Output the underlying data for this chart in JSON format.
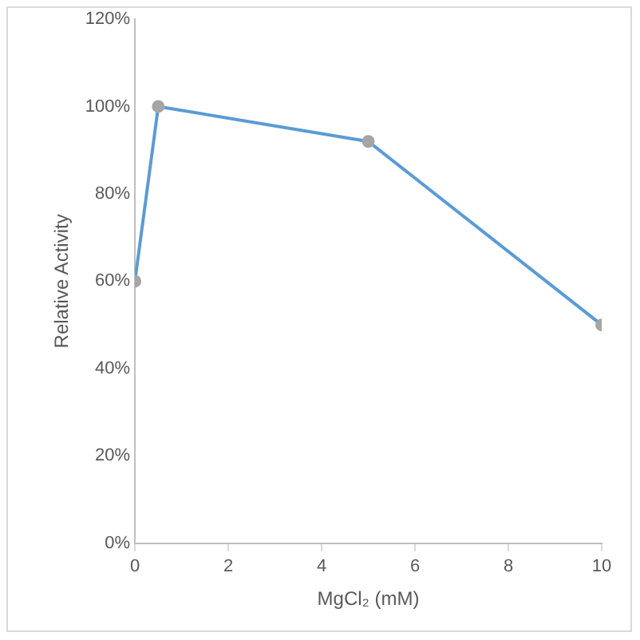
{
  "chart_data": {
    "type": "line",
    "xlabel": "MgCl₂ (mM)",
    "ylabel": "Relative Activity",
    "x": [
      0,
      0.5,
      5,
      10
    ],
    "series": [
      {
        "color": "#5b9bd5",
        "colors": [
          "#a5a5a5",
          "#a5a5a5",
          "#a5a5a5",
          "#a5a5a5"
        ],
        "values": [
          60,
          100,
          92,
          50
        ]
      }
    ],
    "xlim": [
      0,
      10
    ],
    "xticks": [
      0,
      2,
      4,
      6,
      8,
      10
    ],
    "ylim": [
      0,
      120
    ],
    "yticks": [
      {
        "value": 0,
        "label": "0%"
      },
      {
        "value": 20,
        "label": "20%"
      },
      {
        "value": 40,
        "label": "40%"
      },
      {
        "value": 60,
        "label": "60%"
      },
      {
        "value": 80,
        "label": "80%"
      },
      {
        "value": 100,
        "label": "100%"
      },
      {
        "value": 120,
        "label": "120%"
      }
    ],
    "grid": false,
    "legend": false,
    "marker": "circle",
    "line_style": "solid"
  }
}
